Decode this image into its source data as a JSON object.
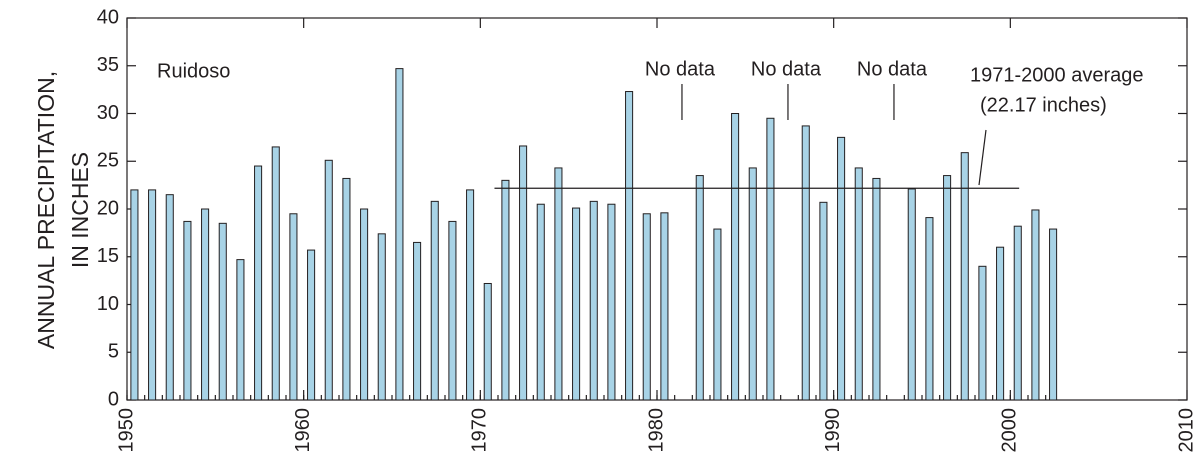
{
  "chart_data": {
    "type": "bar",
    "ylabel": [
      "ANNUAL PRECIPITATION,",
      "IN INCHES"
    ],
    "station": "Ruidoso",
    "x": [
      1950,
      1951,
      1952,
      1953,
      1954,
      1955,
      1956,
      1957,
      1958,
      1959,
      1960,
      1961,
      1962,
      1963,
      1964,
      1965,
      1966,
      1967,
      1968,
      1969,
      1970,
      1971,
      1972,
      1973,
      1974,
      1975,
      1976,
      1977,
      1978,
      1979,
      1980,
      1981,
      1982,
      1983,
      1984,
      1985,
      1986,
      1987,
      1988,
      1989,
      1990,
      1991,
      1992,
      1993,
      1994,
      1995,
      1996,
      1997,
      1998,
      1999,
      2000,
      2001,
      2002
    ],
    "values": [
      22,
      22,
      21.5,
      18.7,
      20,
      18.5,
      14.7,
      24.5,
      26.5,
      19.5,
      15.7,
      25.1,
      23.2,
      20,
      17.4,
      34.7,
      16.5,
      20.8,
      18.7,
      22,
      12.2,
      23,
      26.6,
      20.5,
      24.3,
      20.1,
      20.8,
      20.5,
      32.3,
      19.5,
      19.6,
      null,
      23.5,
      17.9,
      30,
      24.3,
      29.5,
      null,
      28.7,
      20.7,
      27.5,
      24.3,
      23.2,
      null,
      22.1,
      19.1,
      23.5,
      25.9,
      14,
      16,
      18.2,
      19.9,
      17.9
    ],
    "color": "#a8d3e6",
    "xlim": [
      1950,
      2010
    ],
    "xticks": [
      1950,
      1960,
      1970,
      1980,
      1990,
      2000,
      2010
    ],
    "ylim": [
      0,
      40
    ],
    "yticks": [
      0,
      5,
      10,
      15,
      20,
      25,
      30,
      35,
      40
    ],
    "annotations": [
      {
        "text": "No data",
        "x": 1981
      },
      {
        "text": "No data",
        "x": 1987
      },
      {
        "text": "No data",
        "x": 1993
      }
    ],
    "average": {
      "value": 22.17,
      "label": [
        "1971-2000 average",
        "(22.17 inches)"
      ]
    }
  }
}
